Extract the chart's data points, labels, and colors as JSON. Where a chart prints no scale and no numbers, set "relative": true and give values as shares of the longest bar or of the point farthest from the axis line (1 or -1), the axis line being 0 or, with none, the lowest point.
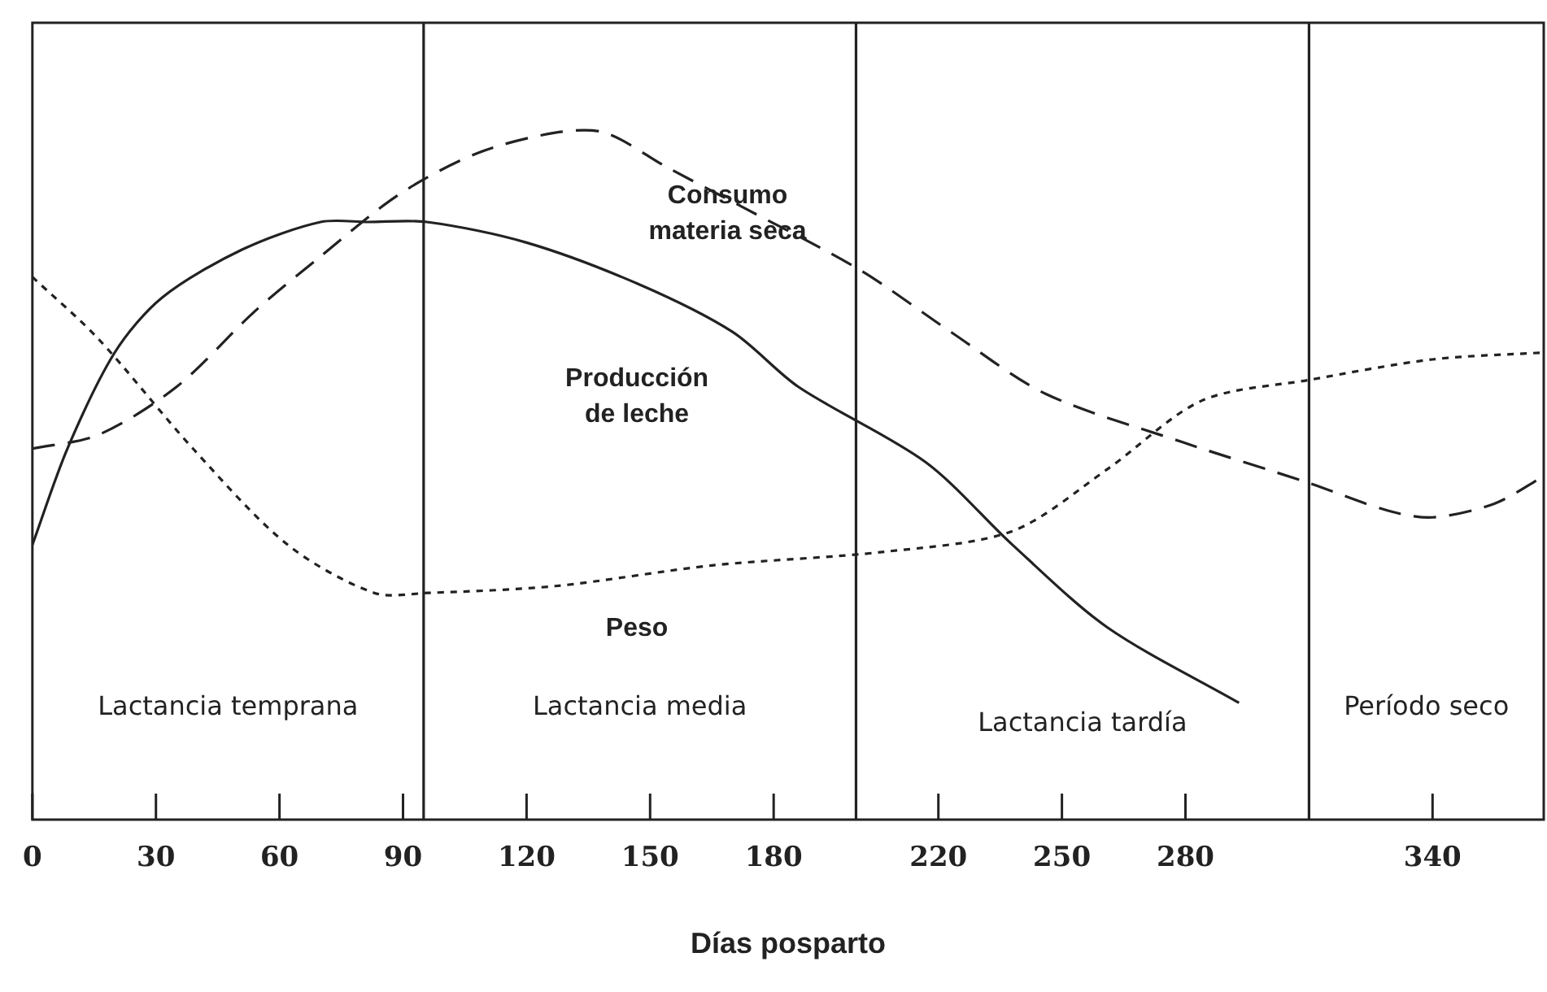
{
  "chart_data": {
    "type": "line",
    "relative": true,
    "xlabel": "Días posparto",
    "xlim": [
      0,
      367
    ],
    "xticks": [
      0,
      30,
      60,
      90,
      120,
      150,
      180,
      220,
      250,
      280,
      340
    ],
    "grid": false,
    "legend": false,
    "marker": "none",
    "series": [
      {
        "name": "Producción\nde leche",
        "color": "#222222",
        "line_style": "solid",
        "x": [
          0,
          8.5,
          20,
          31.5,
          51,
          70,
          81.5,
          95.8,
          120,
          147,
          170,
          186,
          217,
          238,
          261,
          293
        ],
        "values": [
          0.4,
          0.54,
          0.68,
          0.76,
          0.83,
          0.87,
          0.87,
          0.87,
          0.84,
          0.78,
          0.71,
          0.63,
          0.52,
          0.4,
          0.28,
          0.17
        ]
      },
      {
        "name": "Consumo\nmateria seca",
        "color": "#222222",
        "line_style": "dashed",
        "x": [
          0,
          16,
          35,
          54,
          70,
          89,
          108,
          127,
          139,
          154,
          173,
          201,
          223,
          246,
          279,
          310,
          329,
          340,
          355,
          367
        ],
        "values": [
          0.54,
          0.56,
          0.63,
          0.74,
          0.82,
          0.91,
          0.97,
          1,
          1,
          0.95,
          0.89,
          0.8,
          0.71,
          0.62,
          0.55,
          0.49,
          0.45,
          0.44,
          0.46,
          0.5
        ]
      },
      {
        "name": "Peso",
        "color": "#222222",
        "line_style": "dotted",
        "x": [
          0,
          16,
          39,
          62,
          83,
          96,
          127,
          165,
          207,
          238,
          261,
          284,
          310,
          340,
          367
        ],
        "values": [
          0.79,
          0.7,
          0.54,
          0.4,
          0.33,
          0.33,
          0.34,
          0.37,
          0.39,
          0.42,
          0.51,
          0.61,
          0.64,
          0.67,
          0.68
        ]
      }
    ],
    "ref_lines": [
      {
        "axis": "x",
        "value": 95
      },
      {
        "axis": "x",
        "value": 200
      },
      {
        "axis": "x",
        "value": 310
      }
    ],
    "annotations": [
      "Lactancia temprana",
      "Lactancia media",
      "Lactancia tardía",
      "Período seco"
    ]
  }
}
